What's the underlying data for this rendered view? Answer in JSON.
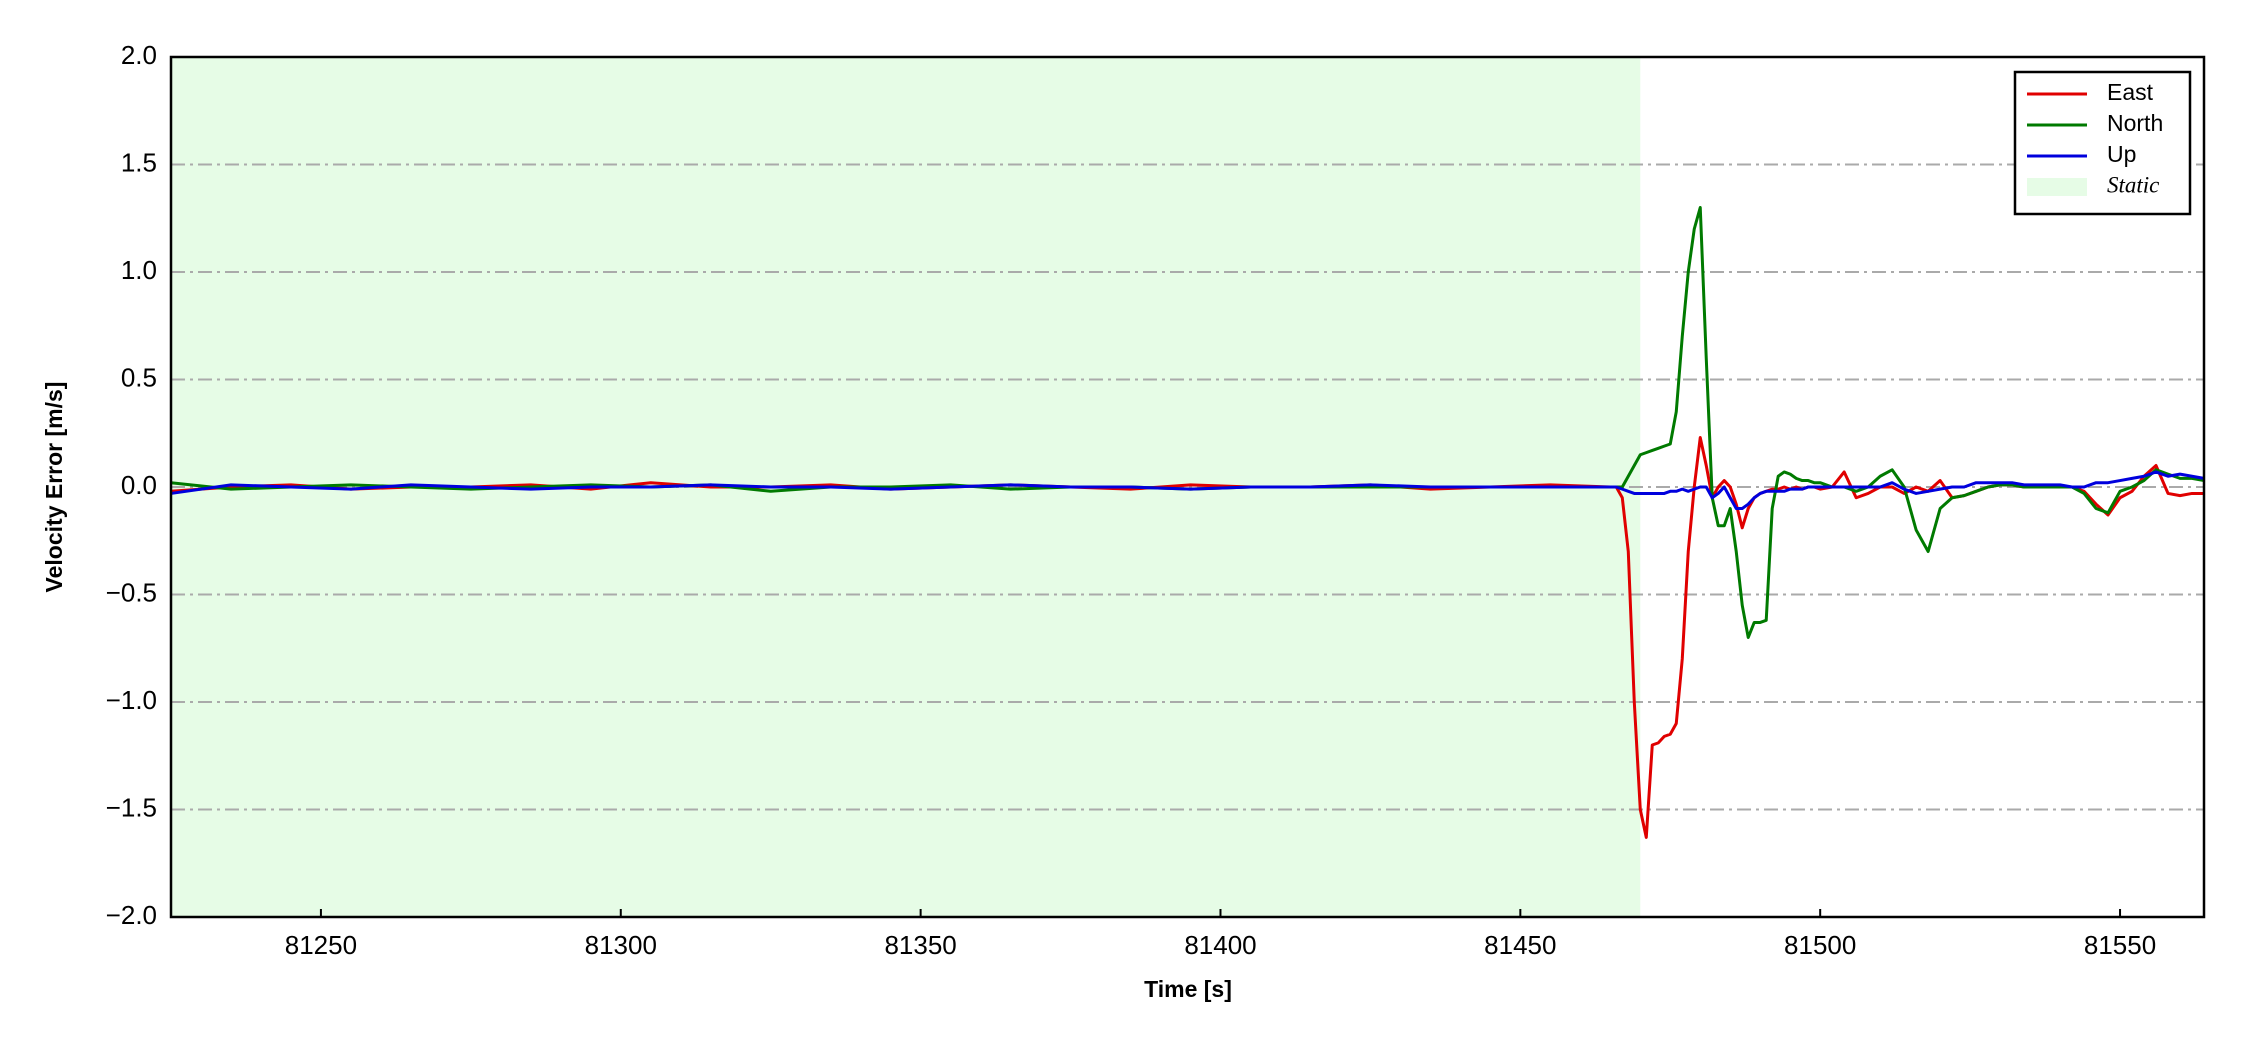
{
  "chart_data": {
    "type": "line",
    "xlabel": "Time [s]",
    "ylabel": "Velocity Error [m/s]",
    "xlim": [
      81225,
      81564
    ],
    "xticks": [
      81250,
      81300,
      81350,
      81400,
      81450,
      81500,
      81550
    ],
    "ylim": [
      -2,
      2
    ],
    "yticks": [
      {
        "value": -2,
        "label": "−2.0"
      },
      {
        "value": -1.5,
        "label": "−1.5"
      },
      {
        "value": -1,
        "label": "−1.0"
      },
      {
        "value": -0.5,
        "label": "−0.5"
      },
      {
        "value": 0,
        "label": "0.0"
      },
      {
        "value": 0.5,
        "label": "0.5"
      },
      {
        "value": 1,
        "label": "1.0"
      },
      {
        "value": 1.5,
        "label": "1.5"
      },
      {
        "value": 2,
        "label": "2.0"
      }
    ],
    "grid": "y",
    "legend": "upper right",
    "shaded_region": {
      "xlim": [
        81225,
        81470
      ],
      "color": "#e6fce6",
      "label": "Static"
    },
    "x": [
      81225,
      81235,
      81245,
      81255,
      81265,
      81275,
      81285,
      81295,
      81305,
      81315,
      81325,
      81335,
      81345,
      81355,
      81365,
      81375,
      81385,
      81395,
      81405,
      81415,
      81425,
      81435,
      81445,
      81455,
      81465,
      81466,
      81467,
      81468,
      81469,
      81470,
      81471,
      81472,
      81473,
      81474,
      81475,
      81476,
      81477,
      81478,
      81479,
      81480,
      81481,
      81482,
      81483,
      81484,
      81485,
      81486,
      81487,
      81488,
      81489,
      81490,
      81491,
      81492,
      81493,
      81494,
      81495,
      81496,
      81497,
      81498,
      81499,
      81500,
      81502,
      81504,
      81506,
      81508,
      81510,
      81512,
      81514,
      81516,
      81518,
      81520,
      81522,
      81524,
      81526,
      81528,
      81530,
      81532,
      81534,
      81536,
      81538,
      81540,
      81542,
      81544,
      81546,
      81548,
      81550,
      81552,
      81554,
      81556,
      81558,
      81560,
      81562,
      81564
    ],
    "series": [
      {
        "name": "East",
        "color": "#e00000",
        "values": [
          -0.02,
          0.0,
          0.01,
          -0.01,
          0.0,
          0.0,
          0.01,
          -0.01,
          0.02,
          0.0,
          0.0,
          0.01,
          -0.01,
          0.0,
          0.01,
          0.0,
          -0.01,
          0.01,
          0.0,
          0.0,
          0.01,
          -0.01,
          0.0,
          0.01,
          0.0,
          0.0,
          -0.05,
          -0.3,
          -1.0,
          -1.5,
          -1.63,
          -1.2,
          -1.19,
          -1.16,
          -1.15,
          -1.1,
          -0.8,
          -0.3,
          0.0,
          0.23,
          0.1,
          -0.05,
          0.0,
          0.03,
          0.0,
          -0.08,
          -0.19,
          -0.1,
          -0.05,
          -0.03,
          -0.02,
          -0.01,
          -0.01,
          0.0,
          -0.01,
          0.0,
          -0.01,
          0.0,
          0.0,
          -0.01,
          0.0,
          0.07,
          -0.05,
          -0.03,
          0.0,
          0.0,
          -0.03,
          0.0,
          -0.02,
          0.03,
          -0.05,
          -0.04,
          -0.02,
          0.0,
          0.01,
          0.01,
          0.0,
          0.0,
          0.0,
          0.0,
          0.0,
          -0.02,
          -0.08,
          -0.13,
          -0.05,
          -0.02,
          0.05,
          0.1,
          -0.03,
          -0.04,
          -0.03,
          -0.03
        ]
      },
      {
        "name": "North",
        "color": "#007a00",
        "values": [
          0.02,
          -0.01,
          0.0,
          0.01,
          0.0,
          -0.01,
          0.0,
          0.01,
          0.0,
          0.01,
          -0.02,
          0.0,
          0.0,
          0.01,
          -0.01,
          0.0,
          0.0,
          -0.01,
          0.0,
          0.0,
          0.0,
          0.0,
          0.0,
          0.0,
          0.0,
          0.0,
          0.0,
          0.05,
          0.1,
          0.15,
          0.16,
          0.17,
          0.18,
          0.19,
          0.2,
          0.35,
          0.7,
          1.0,
          1.2,
          1.3,
          0.6,
          -0.05,
          -0.18,
          -0.18,
          -0.1,
          -0.3,
          -0.55,
          -0.7,
          -0.63,
          -0.63,
          -0.62,
          -0.1,
          0.05,
          0.07,
          0.06,
          0.04,
          0.03,
          0.03,
          0.02,
          0.02,
          0.0,
          0.0,
          -0.02,
          0.0,
          0.05,
          0.08,
          0.0,
          -0.2,
          -0.3,
          -0.1,
          -0.05,
          -0.04,
          -0.02,
          0.0,
          0.01,
          0.01,
          0.0,
          0.0,
          0.0,
          0.0,
          0.0,
          -0.03,
          -0.1,
          -0.12,
          -0.02,
          0.0,
          0.03,
          0.08,
          0.06,
          0.04,
          0.04,
          0.03
        ]
      },
      {
        "name": "Up",
        "color": "#0000dd",
        "values": [
          -0.03,
          0.01,
          0.0,
          -0.01,
          0.01,
          0.0,
          -0.01,
          0.0,
          0.0,
          0.01,
          0.0,
          0.0,
          -0.01,
          0.0,
          0.01,
          0.0,
          0.0,
          -0.01,
          0.0,
          0.0,
          0.01,
          0.0,
          0.0,
          0.0,
          0.0,
          0.0,
          -0.01,
          -0.02,
          -0.03,
          -0.03,
          -0.03,
          -0.03,
          -0.03,
          -0.03,
          -0.02,
          -0.02,
          -0.01,
          -0.02,
          -0.01,
          0.0,
          0.0,
          -0.05,
          -0.03,
          0.0,
          -0.05,
          -0.1,
          -0.1,
          -0.08,
          -0.05,
          -0.03,
          -0.02,
          -0.02,
          -0.02,
          -0.02,
          -0.01,
          -0.01,
          -0.01,
          0.0,
          0.0,
          0.0,
          0.0,
          0.0,
          0.0,
          0.0,
          0.0,
          0.02,
          -0.01,
          -0.03,
          -0.02,
          -0.01,
          0.0,
          0.0,
          0.02,
          0.02,
          0.02,
          0.02,
          0.01,
          0.01,
          0.01,
          0.01,
          0.0,
          0.0,
          0.02,
          0.02,
          0.03,
          0.04,
          0.05,
          0.07,
          0.05,
          0.06,
          0.05,
          0.04
        ]
      }
    ]
  }
}
